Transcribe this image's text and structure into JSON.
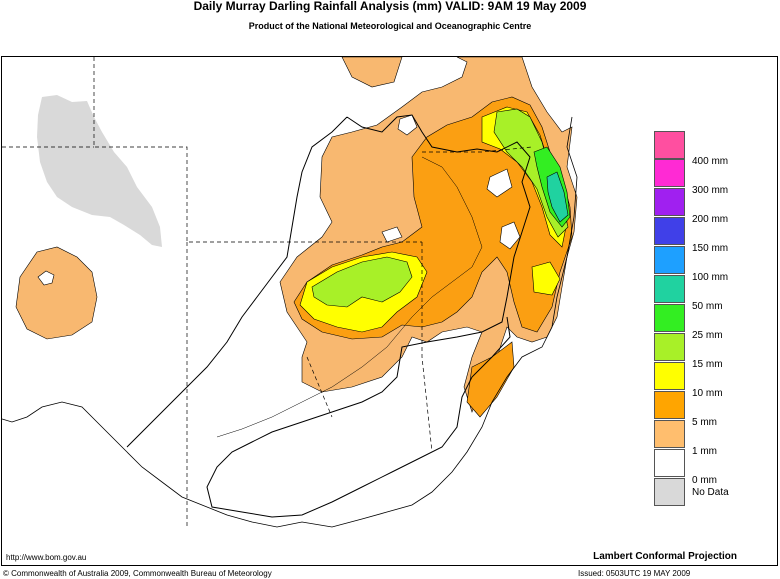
{
  "header": {
    "title": "Daily Murray Darling Rainfall Analysis (mm)  VALID: 9AM 19 May 2009",
    "subtitle": "Product of the National Meteorological and Oceanographic Centre"
  },
  "legend": {
    "items": [
      {
        "label": "",
        "color": "#ff4fa0"
      },
      {
        "label": "400 mm",
        "color": "#ff2ad4"
      },
      {
        "label": "300 mm",
        "color": "#a020f0"
      },
      {
        "label": "200 mm",
        "color": "#4040e8"
      },
      {
        "label": "150 mm",
        "color": "#1ea0ff"
      },
      {
        "label": "100 mm",
        "color": "#20d2a0"
      },
      {
        "label": "50 mm",
        "color": "#33ee22"
      },
      {
        "label": "25 mm",
        "color": "#a8f028"
      },
      {
        "label": "15 mm",
        "color": "#ffff00"
      },
      {
        "label": "10 mm",
        "color": "#ffa500"
      },
      {
        "label": "5 mm",
        "color": "#ffbe6e"
      },
      {
        "label": "1 mm",
        "color": "#ffffff"
      },
      {
        "label": "0 mm",
        "color": "#d9d9d9"
      }
    ],
    "nodata_label": "No Data"
  },
  "colors": {
    "light_orange": "#f8b870",
    "orange": "#fb9f12",
    "yellow": "#ffff00",
    "light_green": "#a8f028",
    "green": "#33ee22",
    "teal": "#20d2a0",
    "no_data": "#d9d9d9"
  },
  "footer": {
    "url": "http://www.bom.gov.au",
    "copyright": "© Commonwealth of Australia 2009, Commonwealth Bureau of Meteorology",
    "projection": "Lambert Conformal Projection",
    "issued": "Issued: 0503UTC 19 MAY 2009"
  }
}
